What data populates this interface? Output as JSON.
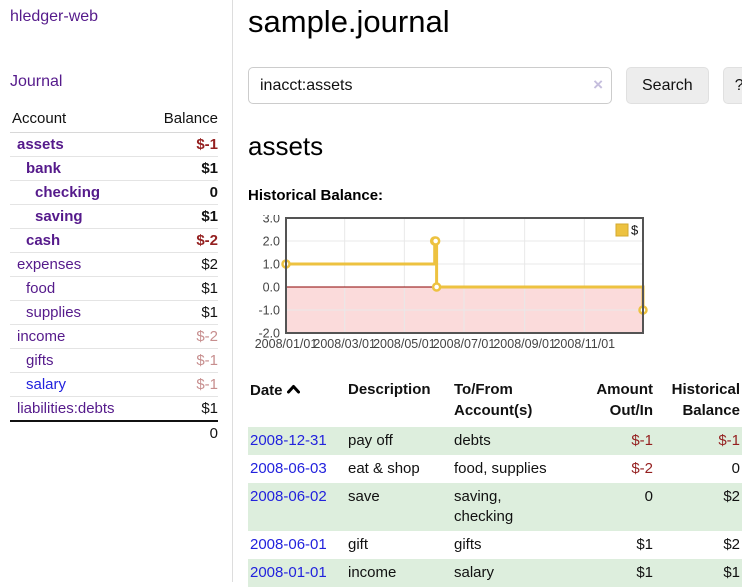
{
  "colors": {
    "link_purple": "#551a8b",
    "link_blue": "#2222dd",
    "negative_strong": "#941f1f",
    "negative_faded": "#c78e8e",
    "row_stripe_green": "#ddeedd",
    "chart_line": "#edc240",
    "chart_negative_fill": "#fbdbdb",
    "chart_zero_line": "#8b0000",
    "chart_grid": "#e8e8e8",
    "chart_border": "#545454",
    "chart_tick_text": "#444444"
  },
  "sidebar": {
    "app_title": "hledger-web",
    "journal_link": "Journal",
    "accounts_header": {
      "account": "Account",
      "balance": "Balance"
    },
    "accounts": [
      {
        "name": "assets",
        "balance": "$-1",
        "depth": 1,
        "strong": true,
        "neg": "strong",
        "link": "visited"
      },
      {
        "name": "bank",
        "balance": "$1",
        "depth": 2,
        "strong": true,
        "neg": null,
        "link": "visited"
      },
      {
        "name": "checking",
        "balance": "0",
        "depth": 3,
        "strong": true,
        "neg": null,
        "link": "visited"
      },
      {
        "name": "saving",
        "balance": "$1",
        "depth": 3,
        "strong": true,
        "neg": null,
        "link": "visited"
      },
      {
        "name": "cash",
        "balance": "$-2",
        "depth": 2,
        "strong": true,
        "neg": "strong",
        "link": "visited"
      },
      {
        "name": "expenses",
        "balance": "$2",
        "depth": 1,
        "strong": false,
        "neg": null,
        "link": "visited"
      },
      {
        "name": "food",
        "balance": "$1",
        "depth": 2,
        "strong": false,
        "neg": null,
        "link": "visited"
      },
      {
        "name": "supplies",
        "balance": "$1",
        "depth": 2,
        "strong": false,
        "neg": null,
        "link": "visited"
      },
      {
        "name": "income",
        "balance": "$-2",
        "depth": 1,
        "strong": false,
        "neg": "faded",
        "link": "visited"
      },
      {
        "name": "gifts",
        "balance": "$-1",
        "depth": 2,
        "strong": false,
        "neg": "faded",
        "link": "visited"
      },
      {
        "name": "salary",
        "balance": "$-1",
        "depth": 2,
        "strong": false,
        "neg": "faded",
        "link": "unvisited"
      },
      {
        "name": "liabilities:debts",
        "balance": "$1",
        "depth": 1,
        "strong": false,
        "neg": null,
        "link": "visited"
      }
    ],
    "total": "0"
  },
  "header": {
    "title": "sample.journal"
  },
  "search": {
    "value": "inacct:assets",
    "clear_label": "×",
    "button_label": "Search",
    "help_label": "?"
  },
  "account_page": {
    "heading": "assets",
    "chart_label": "Historical Balance:"
  },
  "chart_data": {
    "type": "line",
    "step": true,
    "title": "Historical Balance",
    "legend": [
      {
        "label": "$",
        "color": "#edc240"
      }
    ],
    "legend_position": "top-right",
    "x_range": [
      "2008-01-01",
      "2008-12-31"
    ],
    "y_range": [
      -2,
      3
    ],
    "x_ticks": [
      "2008/01/01",
      "2008/03/01",
      "2008/05/01",
      "2008/07/01",
      "2008/09/01",
      "2008/11/01"
    ],
    "y_ticks": [
      3,
      2,
      1,
      0,
      -1,
      -2
    ],
    "grid": true,
    "negative_region_shaded": true,
    "series": [
      {
        "name": "$",
        "points": [
          [
            "2008-01-01",
            1
          ],
          [
            "2008-06-01",
            2
          ],
          [
            "2008-06-02",
            2
          ],
          [
            "2008-06-03",
            0
          ],
          [
            "2008-12-31",
            -1
          ]
        ]
      }
    ]
  },
  "register": {
    "columns": {
      "date": "Date",
      "description": "Description",
      "accounts": "To/From Account(s)",
      "amount": "Amount Out/In",
      "balance": "Historical Balance"
    },
    "sort": {
      "column": "date",
      "direction": "ascending"
    },
    "rows": [
      {
        "date": "2008-12-31",
        "description": "pay off",
        "accounts": "debts",
        "amount": "$-1",
        "balance": "$-1"
      },
      {
        "date": "2008-06-03",
        "description": "eat & shop",
        "accounts": "food, supplies",
        "amount": "$-2",
        "balance": "0"
      },
      {
        "date": "2008-06-02",
        "description": "save",
        "accounts": "saving, checking",
        "amount": "0",
        "balance": "$2"
      },
      {
        "date": "2008-06-01",
        "description": "gift",
        "accounts": "gifts",
        "amount": "$1",
        "balance": "$2"
      },
      {
        "date": "2008-01-01",
        "description": "income",
        "accounts": "salary",
        "amount": "$1",
        "balance": "$1"
      }
    ]
  }
}
